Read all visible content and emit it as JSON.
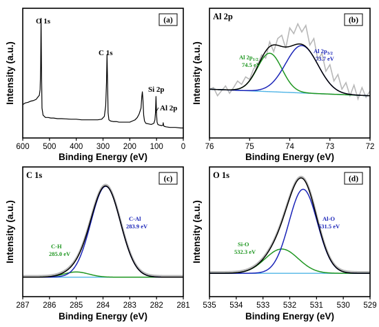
{
  "colors": {
    "raw": "#b8b8b8",
    "envelope": "#000000",
    "component_green": "#1e9620",
    "component_blue": "#1a24b8",
    "background": "#4fb4e6",
    "survey_line": "#000000"
  },
  "chart_data": [
    {
      "panel": "(a)",
      "type": "line",
      "title": "",
      "xlabel": "Binding Energy (eV)",
      "ylabel": "Intensity (a.u.)",
      "xlim": [
        600,
        0
      ],
      "x_reversed": true,
      "xticks": [
        600,
        500,
        400,
        300,
        200,
        100,
        0
      ],
      "y_scale": "arbitrary 0-1",
      "ylim": [
        0,
        1
      ],
      "series": [
        {
          "x": [
            600,
            590,
            580,
            570,
            560,
            550,
            545,
            538,
            535,
            533,
            531.5,
            530,
            528,
            524,
            515,
            505,
            495,
            485,
            470,
            455,
            440,
            420,
            400,
            380,
            360,
            340,
            320,
            305,
            295,
            290,
            287,
            285,
            283,
            281,
            278,
            272,
            262,
            250,
            240,
            230,
            220,
            210,
            200,
            190,
            180,
            172,
            165,
            158,
            155,
            153,
            151,
            148,
            145,
            140,
            130,
            120,
            110,
            106,
            104,
            102,
            100,
            98,
            95,
            90,
            80,
            76,
            75,
            74,
            72,
            65,
            50,
            30,
            10,
            0
          ],
          "values": [
            0.23,
            0.245,
            0.25,
            0.26,
            0.265,
            0.275,
            0.29,
            0.31,
            0.36,
            0.55,
            0.97,
            0.55,
            0.2,
            0.14,
            0.12,
            0.12,
            0.115,
            0.115,
            0.11,
            0.11,
            0.108,
            0.105,
            0.105,
            0.1,
            0.1,
            0.1,
            0.1,
            0.105,
            0.13,
            0.22,
            0.42,
            0.66,
            0.42,
            0.16,
            0.1,
            0.09,
            0.085,
            0.085,
            0.08,
            0.08,
            0.08,
            0.08,
            0.08,
            0.09,
            0.1,
            0.12,
            0.15,
            0.2,
            0.3,
            0.34,
            0.28,
            0.14,
            0.09,
            0.07,
            0.065,
            0.06,
            0.07,
            0.1,
            0.16,
            0.3,
            0.15,
            0.08,
            0.06,
            0.055,
            0.05,
            0.055,
            0.075,
            0.055,
            0.045,
            0.04,
            0.035,
            0.035,
            0.03,
            0.03
          ]
        }
      ],
      "annotations": [
        {
          "text": "O 1s",
          "x": 533
        },
        {
          "text": "C 1s",
          "x": 285
        },
        {
          "text": "Si 2p",
          "x": 102
        },
        {
          "text": "Al 2p",
          "x": 74
        }
      ]
    },
    {
      "panel": "(b)",
      "type": "line",
      "title": "Al 2p",
      "xlabel": "Binding Energy (eV)",
      "ylabel": "Intensity (a.u.)",
      "xlim": [
        76,
        72
      ],
      "x_reversed": true,
      "xticks": [
        76,
        75,
        74,
        73,
        72
      ],
      "y_scale": "arbitrary 0-1",
      "ylim": [
        0,
        1
      ],
      "raw": {
        "x": [
          76,
          75.9,
          75.8,
          75.7,
          75.6,
          75.5,
          75.4,
          75.3,
          75.2,
          75.1,
          75,
          74.9,
          74.8,
          74.7,
          74.6,
          74.5,
          74.4,
          74.3,
          74.2,
          74.1,
          74,
          73.9,
          73.8,
          73.7,
          73.6,
          73.5,
          73.4,
          73.3,
          73.2,
          73.1,
          73,
          72.9,
          72.8,
          72.7,
          72.6,
          72.5,
          72.4,
          72.3,
          72.2,
          72.1,
          72
        ],
        "values": [
          0.2,
          0.22,
          0.12,
          0.18,
          0.24,
          0.15,
          0.22,
          0.3,
          0.26,
          0.35,
          0.32,
          0.45,
          0.5,
          0.62,
          0.58,
          0.78,
          0.66,
          0.82,
          0.86,
          0.7,
          0.95,
          0.88,
          1.0,
          0.9,
          0.98,
          0.74,
          0.82,
          0.56,
          0.64,
          0.42,
          0.5,
          0.3,
          0.38,
          0.2,
          0.28,
          0.12,
          0.25,
          0.08,
          0.22,
          0.1,
          0.18
        ]
      },
      "background": {
        "x": [
          76,
          72
        ],
        "values": [
          0.2,
          0.12
        ]
      },
      "components": [
        {
          "name": "Al 2p1/2",
          "label_main": "Al 2p",
          "label_sub": "1/2",
          "label_value": "74.5 eV",
          "center": 74.5,
          "height": 0.47,
          "fwhm": 0.72,
          "color_key": "component_green"
        },
        {
          "name": "Al 2p3/2",
          "label_main": "Al 2p",
          "label_sub": "3/2",
          "label_value": "73.7 eV",
          "center": 73.7,
          "height": 0.58,
          "fwhm": 0.95,
          "color_key": "component_blue"
        }
      ]
    },
    {
      "panel": "(c)",
      "type": "line",
      "title": "C 1s",
      "xlabel": "Binding Energy (eV)",
      "ylabel": "Intensity (a.u.)",
      "xlim": [
        287,
        281
      ],
      "x_reversed": true,
      "xticks": [
        287,
        286,
        285,
        284,
        283,
        282,
        281
      ],
      "y_scale": "arbitrary 0-1",
      "ylim": [
        0,
        1
      ],
      "background": {
        "x": [
          287,
          281
        ],
        "values": [
          0.0,
          0.0
        ]
      },
      "components": [
        {
          "name": "C-H",
          "label_main": "C-H",
          "label_sub": "",
          "label_value": "285.0 eV",
          "center": 285.0,
          "height": 0.055,
          "fwhm": 1.1,
          "color_key": "component_green"
        },
        {
          "name": "C-Al",
          "label_main": "C-Al",
          "label_sub": "",
          "label_value": "283.9 eV",
          "center": 283.9,
          "height": 0.96,
          "fwhm": 1.3,
          "color_key": "component_blue"
        }
      ]
    },
    {
      "panel": "(d)",
      "type": "line",
      "title": "O 1s",
      "xlabel": "Binding Energy (eV)",
      "ylabel": "Intensity (a.u.)",
      "xlim": [
        535,
        529
      ],
      "x_reversed": true,
      "xticks": [
        535,
        534,
        533,
        532,
        531,
        530,
        529
      ],
      "y_scale": "arbitrary 0-1",
      "ylim": [
        0,
        1
      ],
      "background": {
        "x": [
          535,
          529
        ],
        "values": [
          0.0,
          0.0
        ]
      },
      "components": [
        {
          "name": "Si-O",
          "label_main": "Si-O",
          "label_sub": "",
          "label_value": "532.3 eV",
          "center": 532.3,
          "height": 0.26,
          "fwhm": 1.45,
          "color_key": "component_green"
        },
        {
          "name": "Al-O",
          "label_main": "Al-O",
          "label_sub": "",
          "label_value": "531.5 eV",
          "center": 531.5,
          "height": 0.9,
          "fwhm": 1.25,
          "color_key": "component_blue"
        }
      ]
    }
  ]
}
